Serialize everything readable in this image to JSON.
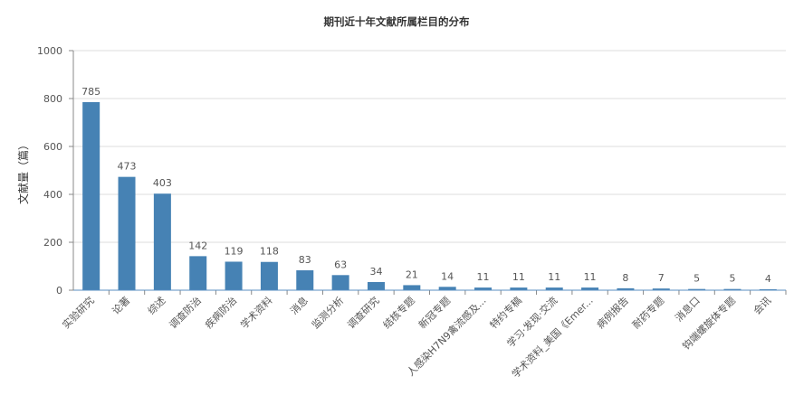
{
  "chart_data": {
    "type": "bar",
    "title": "期刊近十年文献所属栏目的分布",
    "xlabel": "",
    "ylabel": "文献量（篇）",
    "ylim": [
      0,
      1000
    ],
    "yticks": [
      0,
      200,
      400,
      600,
      800,
      1000
    ],
    "grid": true,
    "bar_color": "#4682b4",
    "categories": [
      "实验研究",
      "论著",
      "综述",
      "调查防治",
      "疾病防治",
      "学术资料",
      "消息",
      "监测分析",
      "调查研究",
      "结核专题",
      "新冠专题",
      "人感染H7N9禽流感及...",
      "特约专稿",
      "学习·发现·交流",
      "学术资料_美国《Emer...",
      "病例报告",
      "耐药专题",
      "消息口",
      "钩端螺旋体专题",
      "会讯"
    ],
    "values": [
      785,
      473,
      403,
      142,
      119,
      118,
      83,
      63,
      34,
      21,
      14,
      11,
      11,
      11,
      11,
      8,
      7,
      5,
      5,
      4
    ]
  }
}
